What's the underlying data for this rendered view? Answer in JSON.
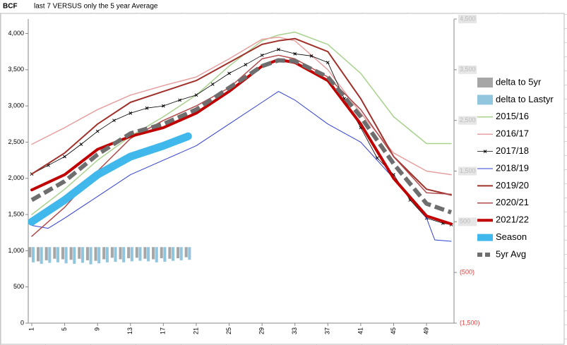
{
  "header": {
    "cell": "BCF",
    "title": "last 7 VERSUS only the 5 year Average"
  },
  "chart_data": {
    "type": "line",
    "xlim": [
      1,
      52
    ],
    "xticks": [
      1,
      5,
      9,
      13,
      17,
      21,
      25,
      29,
      33,
      37,
      41,
      45,
      49
    ],
    "ylim": [
      0,
      4200
    ],
    "yticks": [
      0,
      500,
      {
        "value": 1000,
        "label": "1,000"
      },
      {
        "value": 1500,
        "label": "1,500"
      },
      {
        "value": 2000,
        "label": "2,000"
      },
      {
        "value": 2500,
        "label": "2,500"
      },
      {
        "value": 3000,
        "label": "3,000"
      },
      {
        "value": 3500,
        "label": "3,500"
      },
      {
        "value": 4000,
        "label": "4,000"
      }
    ],
    "y2lim": [
      -1500,
      4500
    ],
    "y2ticks": [
      {
        "value": -1500,
        "label": "(1,500)"
      },
      {
        "value": -500,
        "label": "(500)"
      },
      500,
      {
        "value": 1500,
        "label": "1,500"
      },
      {
        "value": 2500,
        "label": "2,500"
      },
      {
        "value": 3500,
        "label": "3,500"
      },
      {
        "value": 4500,
        "label": "4,500"
      }
    ],
    "series": [
      {
        "name": "delta to 5yr",
        "kind": "bar",
        "axis": "y2",
        "color": "#a6a6a6",
        "x": [
          1,
          2,
          3,
          4,
          5,
          6,
          7,
          8,
          9,
          10,
          11,
          12,
          13,
          14,
          15,
          16,
          17,
          18,
          19,
          20
        ],
        "values": [
          -200,
          -280,
          -260,
          -230,
          -240,
          -250,
          -230,
          -260,
          -270,
          -240,
          -210,
          -240,
          -220,
          -210,
          -230,
          -240,
          -220,
          -230,
          -220,
          -200
        ]
      },
      {
        "name": "delta to Lastyr",
        "kind": "bar",
        "axis": "y2",
        "color": "#92c5de",
        "x": [
          1,
          2,
          3,
          4,
          5,
          6,
          7,
          8,
          9,
          10,
          11,
          12,
          13,
          14,
          15,
          16,
          17,
          18,
          19,
          20
        ],
        "values": [
          -300,
          -330,
          -310,
          -300,
          -320,
          -330,
          -310,
          -340,
          -320,
          -300,
          -290,
          -300,
          -280,
          -270,
          -280,
          -300,
          -290,
          -270,
          -260,
          -250
        ]
      },
      {
        "name": "2015/16",
        "color": "#a9d18e",
        "width": 1.5,
        "x": [
          1,
          5,
          9,
          13,
          17,
          21,
          25,
          29,
          31,
          33,
          37,
          41,
          45,
          49,
          52
        ],
        "values": [
          1500,
          1850,
          2250,
          2580,
          2850,
          3150,
          3550,
          3900,
          3980,
          4020,
          3850,
          3450,
          2850,
          2480,
          2480
        ]
      },
      {
        "name": "2016/17",
        "color": "#e6a0a0",
        "width": 1.5,
        "x": [
          1,
          5,
          9,
          13,
          17,
          21,
          25,
          29,
          31,
          33,
          37,
          41,
          45,
          49,
          52
        ],
        "values": [
          2470,
          2700,
          2950,
          3150,
          3280,
          3400,
          3650,
          3920,
          3950,
          3900,
          3500,
          2900,
          2350,
          2100,
          2050
        ]
      },
      {
        "name": "2017/18",
        "color": "#000000",
        "width": 0.8,
        "marker": true,
        "x": [
          1,
          3,
          5,
          7,
          9,
          11,
          13,
          15,
          17,
          19,
          21,
          23,
          25,
          27,
          29,
          31,
          33,
          35,
          37,
          39,
          41,
          43,
          45,
          47,
          49,
          51,
          52
        ],
        "values": [
          2060,
          2180,
          2300,
          2470,
          2650,
          2800,
          2900,
          2970,
          3000,
          3080,
          3150,
          3300,
          3450,
          3570,
          3700,
          3780,
          3720,
          3690,
          3600,
          3100,
          2700,
          2280,
          2050,
          1700,
          1450,
          1380,
          1360
        ]
      },
      {
        "name": "2018/19",
        "color": "#2f3fd0",
        "width": 1,
        "x": [
          1,
          3,
          5,
          9,
          13,
          17,
          21,
          25,
          29,
          31,
          33,
          37,
          41,
          45,
          49,
          50,
          52
        ],
        "values": [
          1350,
          1310,
          1450,
          1750,
          2050,
          2250,
          2450,
          2750,
          3050,
          3200,
          3080,
          2750,
          2500,
          2000,
          1450,
          1150,
          1130
        ]
      },
      {
        "name": "2019/20",
        "color": "#a0302a",
        "width": 2,
        "x": [
          1,
          5,
          9,
          13,
          17,
          21,
          25,
          29,
          31,
          33,
          37,
          41,
          45,
          49,
          52
        ],
        "values": [
          2060,
          2350,
          2750,
          3050,
          3200,
          3350,
          3600,
          3850,
          3900,
          3930,
          3750,
          3100,
          2300,
          1850,
          1770
        ]
      },
      {
        "name": "2020/21",
        "color": "#b04a4a",
        "width": 1.5,
        "x": [
          1,
          5,
          9,
          13,
          17,
          21,
          25,
          29,
          31,
          33,
          37,
          41,
          45,
          49,
          52
        ],
        "values": [
          1200,
          1600,
          2100,
          2550,
          2800,
          3000,
          3250,
          3650,
          3700,
          3650,
          3400,
          2950,
          2300,
          1800,
          1780
        ]
      },
      {
        "name": "2021/22",
        "color": "#c00000",
        "width": 4,
        "x": [
          1,
          5,
          9,
          13,
          17,
          21,
          25,
          29,
          31,
          33,
          37,
          41,
          45,
          49,
          52
        ],
        "values": [
          1840,
          2050,
          2400,
          2580,
          2700,
          2900,
          3200,
          3550,
          3640,
          3600,
          3350,
          2750,
          2000,
          1480,
          1370
        ]
      },
      {
        "name": "Season",
        "color": "#40b8ec",
        "width": 11,
        "x": [
          1,
          5,
          9,
          13,
          17,
          20
        ],
        "values": [
          1400,
          1700,
          2050,
          2300,
          2450,
          2580
        ]
      },
      {
        "name": "5yr Avg",
        "color": "#6e6e6e",
        "width": 6,
        "dash": true,
        "x": [
          1,
          5,
          9,
          13,
          17,
          21,
          25,
          29,
          31,
          33,
          37,
          41,
          45,
          49,
          52
        ],
        "values": [
          1700,
          1960,
          2330,
          2620,
          2750,
          2950,
          3250,
          3550,
          3630,
          3620,
          3400,
          2850,
          2200,
          1650,
          1530
        ]
      }
    ]
  }
}
